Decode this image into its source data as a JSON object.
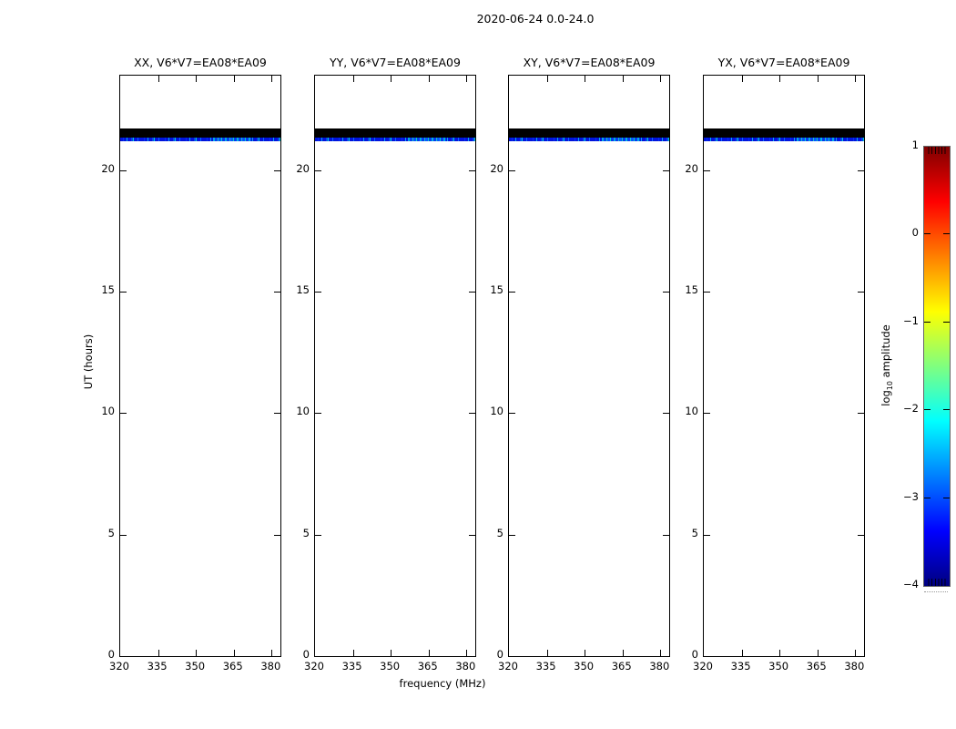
{
  "figure": {
    "title": "2020-06-24 0.0-24.0",
    "xlabel": "frequency (MHz)",
    "ylabel": "UT (hours)",
    "colorbar_label": {
      "prefix": "log",
      "sub": "10",
      "suffix": " amplitude"
    }
  },
  "chart_data": {
    "type": "heatmap",
    "title": "2020-06-24 0.0-24.0",
    "subtitle_meaning": "date 2020-06-24, UT span 0.0-24.0 hours",
    "panels": [
      {
        "title": "XX, V6*V7=EA08*EA09"
      },
      {
        "title": "YY, V6*V7=EA08*EA09"
      },
      {
        "title": "XY, V6*V7=EA08*EA09"
      },
      {
        "title": "YX, V6*V7=EA08*EA09"
      }
    ],
    "x": {
      "label": "frequency (MHz)",
      "min": 320,
      "max": 383.5,
      "ticks": [
        320,
        335,
        350,
        365,
        380
      ]
    },
    "y": {
      "label": "UT (hours)",
      "min": 0,
      "max": 23.9,
      "ticks": [
        0,
        5,
        10,
        15,
        20
      ]
    },
    "colorbar": {
      "label": "log10 amplitude",
      "colormap": "jet",
      "vmin": -4,
      "vmax": 1,
      "tick_values": [
        1,
        0,
        -1,
        -2,
        -3,
        -4
      ],
      "tick_labels": [
        "1",
        "0",
        "−1",
        "−2",
        "−3",
        "−4"
      ],
      "gradient_hex_top_to_bottom": [
        "#800000",
        "#ff0000",
        "#ffff00",
        "#00ffff",
        "#0000ff",
        "#000080"
      ]
    },
    "signal": {
      "description": "All four polarisation panels are empty (white / no data) for most of the day; a single short scan appears near UT 21.2-21.7 across the full 320-383 MHz band: a saturated/flagged black strip above a speckled low-amplitude blue-cyan noise strip.",
      "black_strip_ut": [
        21.3,
        21.68
      ],
      "noise_strip_ut": [
        21.15,
        21.3
      ],
      "noise_log10_amplitude_range": [
        -3.5,
        -2
      ],
      "noise_colors_hex": [
        "#0114dc",
        "#0448e8",
        "#05a6f0",
        "#00c8d8",
        "#00e0c0"
      ]
    }
  },
  "layout_meta": {
    "background": "#ffffff",
    "axes_edge_color": "#000000",
    "black_strip_color": "#000000"
  }
}
